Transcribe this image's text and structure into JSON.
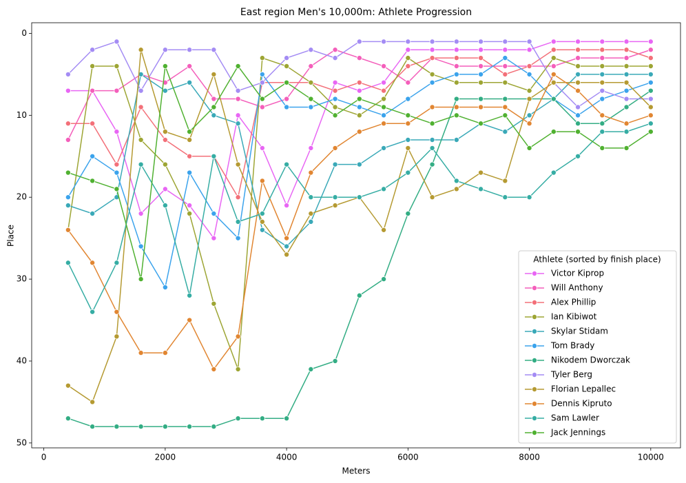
{
  "chart_data": {
    "type": "line",
    "title": "East region Men's 10,000m: Athlete Progression",
    "x_label": "Meters",
    "y_label": "Place",
    "legend_title": "Athlete (sorted by finish place)",
    "legend_position": "lower right",
    "y_inverted": true,
    "xlim": [
      -200,
      10490
    ],
    "ylim": [
      -1.3,
      50.6
    ],
    "xticks": [
      0,
      2000,
      4000,
      6000,
      8000,
      10000
    ],
    "yticks": [
      0,
      10,
      20,
      30,
      40,
      50
    ],
    "x": [
      400,
      800,
      1200,
      1600,
      2000,
      2400,
      2800,
      3200,
      3600,
      4000,
      4400,
      4800,
      5200,
      5600,
      6000,
      6400,
      6800,
      7200,
      7600,
      8000,
      8400,
      8800,
      9200,
      9600,
      10000
    ],
    "series": [
      {
        "name": "Victor Kiprop",
        "color": "#e866f4",
        "values": [
          7,
          7,
          12,
          22,
          19,
          21,
          25,
          10,
          14,
          21,
          14,
          6,
          7,
          6,
          2,
          2,
          2,
          2,
          2,
          2,
          1,
          1,
          1,
          1,
          1
        ]
      },
      {
        "name": "Will Anthony",
        "color": "#f45fbb",
        "values": [
          13,
          7,
          7,
          5,
          6,
          4,
          8,
          8,
          9,
          8,
          4,
          2,
          3,
          4,
          6,
          3,
          4,
          4,
          4,
          4,
          4,
          3,
          3,
          3,
          2
        ]
      },
      {
        "name": "Alex Phillip",
        "color": "#f37079",
        "values": [
          11,
          11,
          16,
          9,
          13,
          15,
          15,
          20,
          6,
          6,
          6,
          7,
          6,
          7,
          4,
          3,
          3,
          3,
          5,
          4,
          2,
          2,
          2,
          2,
          3
        ]
      },
      {
        "name": "Ian Kibiwot",
        "color": "#9da534",
        "values": [
          24,
          4,
          4,
          13,
          16,
          22,
          33,
          41,
          3,
          4,
          6,
          9,
          10,
          8,
          3,
          5,
          6,
          6,
          6,
          7,
          3,
          4,
          4,
          4,
          4
        ]
      },
      {
        "name": "Skylar Stidam",
        "color": "#3aa9b8",
        "values": [
          21,
          22,
          20,
          5,
          7,
          6,
          10,
          11,
          24,
          26,
          23,
          16,
          16,
          14,
          13,
          13,
          13,
          11,
          12,
          10,
          8,
          5,
          5,
          5,
          5
        ]
      },
      {
        "name": "Tom Brady",
        "color": "#3ba3ec",
        "values": [
          20,
          15,
          17,
          26,
          31,
          17,
          22,
          25,
          5,
          9,
          9,
          8,
          9,
          10,
          8,
          6,
          5,
          5,
          3,
          5,
          8,
          10,
          8,
          7,
          6
        ]
      },
      {
        "name": "Nikodem Dworczak",
        "color": "#33ad84",
        "values": [
          47,
          48,
          48,
          48,
          48,
          48,
          48,
          47,
          47,
          47,
          41,
          40,
          32,
          30,
          22,
          16,
          8,
          8,
          8,
          8,
          8,
          11,
          11,
          9,
          7
        ]
      },
      {
        "name": "Tyler Berg",
        "color": "#a48cf4",
        "values": [
          5,
          2,
          1,
          7,
          2,
          2,
          2,
          7,
          6,
          3,
          2,
          3,
          1,
          1,
          1,
          1,
          1,
          1,
          1,
          1,
          6,
          9,
          7,
          8,
          8
        ]
      },
      {
        "name": "Florian Lepallec",
        "color": "#b59a32",
        "values": [
          43,
          45,
          37,
          2,
          12,
          13,
          5,
          16,
          23,
          27,
          22,
          21,
          20,
          24,
          14,
          20,
          19,
          17,
          18,
          8,
          6,
          6,
          6,
          6,
          9
        ]
      },
      {
        "name": "Dennis Kipruto",
        "color": "#e18632",
        "values": [
          24,
          28,
          34,
          39,
          39,
          35,
          41,
          37,
          18,
          25,
          17,
          14,
          12,
          11,
          11,
          9,
          9,
          9,
          9,
          11,
          5,
          7,
          10,
          11,
          10
        ]
      },
      {
        "name": "Sam Lawler",
        "color": "#36ada4",
        "values": [
          28,
          34,
          28,
          16,
          21,
          32,
          15,
          23,
          22,
          16,
          20,
          20,
          20,
          19,
          17,
          14,
          18,
          19,
          20,
          20,
          17,
          15,
          12,
          12,
          11
        ]
      },
      {
        "name": "Jack Jennings",
        "color": "#50b131",
        "values": [
          17,
          18,
          19,
          30,
          4,
          12,
          9,
          4,
          8,
          6,
          8,
          10,
          8,
          9,
          10,
          11,
          10,
          11,
          10,
          14,
          12,
          12,
          14,
          14,
          12
        ]
      }
    ]
  }
}
